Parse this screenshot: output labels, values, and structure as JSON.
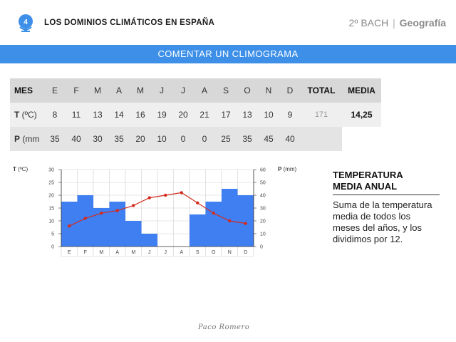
{
  "header": {
    "unit_number": "4",
    "unit_title": "LOS DOMINIOS CLIMÁTICOS EN ESPAÑA",
    "course": "2º BACH",
    "separator": "|",
    "subject": "Geografía"
  },
  "banner": {
    "title": "COMENTAR UN CLIMOGRAMA"
  },
  "table": {
    "header": {
      "label": "MES",
      "months": [
        "E",
        "F",
        "M",
        "A",
        "M",
        "J",
        "J",
        "A",
        "S",
        "O",
        "N",
        "D"
      ],
      "total": "TOTAL",
      "media": "MEDIA"
    },
    "temp_row": {
      "label_bold": "T",
      "label_rest": " (ºC)",
      "values": [
        "8",
        "11",
        "13",
        "14",
        "16",
        "19",
        "20",
        "21",
        "17",
        "13",
        "10",
        "9"
      ],
      "total": "171",
      "media": "14,25"
    },
    "precip_row": {
      "label_bold": "P",
      "label_rest": " (mm",
      "values": [
        "35",
        "40",
        "30",
        "35",
        "20",
        "10",
        "0",
        "0",
        "25",
        "35",
        "45",
        "40"
      ],
      "total": "",
      "media": ""
    }
  },
  "chart_data": {
    "type": "bar",
    "categories": [
      "E",
      "F",
      "M",
      "A",
      "M",
      "J",
      "J",
      "A",
      "S",
      "O",
      "N",
      "D"
    ],
    "series": [
      {
        "name": "P (mm)",
        "type": "bar",
        "axis": "right",
        "values": [
          35,
          40,
          30,
          35,
          20,
          10,
          0,
          0,
          25,
          35,
          45,
          40
        ],
        "color": "#3f7ff2"
      },
      {
        "name": "T (ºC)",
        "type": "line",
        "axis": "left",
        "values": [
          8,
          11,
          13,
          14,
          16,
          19,
          20,
          21,
          17,
          13,
          10,
          9
        ],
        "color": "#d42b1e"
      }
    ],
    "y_left": {
      "label_bold": "T",
      "label_rest": " (ºC)",
      "ylim": [
        0,
        30
      ],
      "ticks": [
        "0",
        "5",
        "10",
        "15",
        "20",
        "25",
        "30"
      ]
    },
    "y_right": {
      "label_bold": "P",
      "label_rest": " (mm)",
      "ylim": [
        0,
        60
      ],
      "ticks": [
        "0",
        "10",
        "20",
        "30",
        "40",
        "50",
        "60"
      ]
    },
    "grid": true
  },
  "side": {
    "title_line1": "TEMPERATURA",
    "title_line2": "MEDIA ANUAL",
    "text": "Suma de la temperatura media de todos los meses del años, y los dividimos por 12."
  },
  "footer": {
    "signature": "Paco Romero"
  },
  "colors": {
    "accent": "#3d8fe8",
    "bar": "#3f7ff2",
    "line": "#d42b1e",
    "badge": "#3d8fe8"
  }
}
